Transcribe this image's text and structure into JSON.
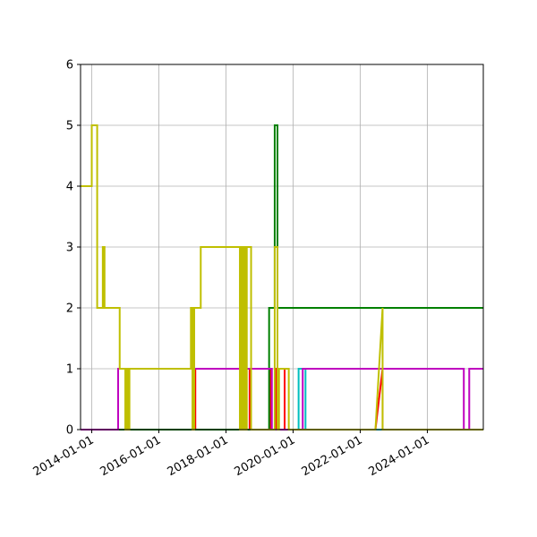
{
  "chart_data": {
    "type": "line",
    "title": "",
    "xlabel": "",
    "ylabel": "",
    "x_type": "date",
    "xlim": [
      "2013-09-01",
      "2025-09-01"
    ],
    "ylim": [
      0,
      6
    ],
    "x_ticks": [
      "2014-01-01",
      "2016-01-01",
      "2018-01-01",
      "2020-01-01",
      "2022-01-01",
      "2024-01-01"
    ],
    "y_ticks": [
      0,
      1,
      2,
      3,
      4,
      5,
      6
    ],
    "grid": true,
    "legend": "none",
    "step": "post",
    "series": [
      {
        "color": "#00bfbf",
        "points": [
          [
            "2013-09-01",
            0
          ],
          [
            "2020-03-01",
            0
          ],
          [
            "2020-03-01",
            1
          ],
          [
            "2020-05-15",
            1
          ],
          [
            "2020-05-15",
            0
          ],
          [
            "2025-09-01",
            0
          ]
        ]
      },
      {
        "color": "#ff0000",
        "points": [
          [
            "2013-09-01",
            0
          ],
          [
            "2017-02-01",
            0
          ],
          [
            "2017-02-01",
            1
          ],
          [
            "2018-07-01",
            1
          ],
          [
            "2018-07-01",
            0
          ],
          [
            "2018-09-15",
            0
          ],
          [
            "2018-09-15",
            1
          ],
          [
            "2019-05-01",
            1
          ],
          [
            "2019-05-01",
            0
          ],
          [
            "2019-07-01",
            0
          ],
          [
            "2019-07-01",
            1
          ],
          [
            "2019-10-01",
            1
          ],
          [
            "2019-10-01",
            0
          ],
          [
            "2022-06-15",
            0
          ],
          [
            "2022-09-01",
            1
          ],
          [
            "2022-09-01",
            0
          ],
          [
            "2025-09-01",
            0
          ]
        ]
      },
      {
        "color": "#008000",
        "points": [
          [
            "2013-09-01",
            0
          ],
          [
            "2019-04-15",
            0
          ],
          [
            "2019-04-15",
            2
          ],
          [
            "2019-06-15",
            2
          ],
          [
            "2019-06-15",
            5
          ],
          [
            "2019-07-15",
            5
          ],
          [
            "2019-07-15",
            2
          ],
          [
            "2025-09-01",
            2
          ]
        ]
      },
      {
        "color": "#bf00bf",
        "points": [
          [
            "2013-09-01",
            0
          ],
          [
            "2014-10-15",
            0
          ],
          [
            "2014-10-15",
            1
          ],
          [
            "2019-05-15",
            1
          ],
          [
            "2019-05-15",
            0
          ],
          [
            "2020-04-15",
            0
          ],
          [
            "2020-04-15",
            1
          ],
          [
            "2025-02-01",
            1
          ],
          [
            "2025-02-01",
            0
          ],
          [
            "2025-04-01",
            0
          ],
          [
            "2025-04-01",
            1
          ],
          [
            "2025-09-01",
            1
          ]
        ]
      },
      {
        "color": "#bfbf00",
        "points": [
          [
            "2013-09-01",
            4
          ],
          [
            "2014-01-01",
            4
          ],
          [
            "2014-01-01",
            5
          ],
          [
            "2014-03-01",
            5
          ],
          [
            "2014-03-01",
            2
          ],
          [
            "2014-05-01",
            2
          ],
          [
            "2014-05-01",
            3
          ],
          [
            "2014-05-20",
            3
          ],
          [
            "2014-05-20",
            2
          ],
          [
            "2014-11-01",
            2
          ],
          [
            "2014-11-01",
            1
          ],
          [
            "2015-01-01",
            1
          ],
          [
            "2015-01-01",
            0
          ],
          [
            "2015-01-15",
            0
          ],
          [
            "2015-01-15",
            1
          ],
          [
            "2015-02-01",
            1
          ],
          [
            "2015-02-01",
            0
          ],
          [
            "2015-02-15",
            0
          ],
          [
            "2015-02-15",
            1
          ],
          [
            "2016-12-15",
            1
          ],
          [
            "2016-12-15",
            2
          ],
          [
            "2017-01-01",
            2
          ],
          [
            "2017-01-01",
            0
          ],
          [
            "2017-01-20",
            0
          ],
          [
            "2017-01-20",
            2
          ],
          [
            "2017-04-01",
            2
          ],
          [
            "2017-04-01",
            3
          ],
          [
            "2018-06-01",
            3
          ],
          [
            "2018-06-01",
            0
          ],
          [
            "2018-06-15",
            0
          ],
          [
            "2018-06-15",
            3
          ],
          [
            "2018-07-01",
            3
          ],
          [
            "2018-07-01",
            0
          ],
          [
            "2018-07-15",
            0
          ],
          [
            "2018-07-15",
            3
          ],
          [
            "2018-08-01",
            3
          ],
          [
            "2018-08-01",
            0
          ],
          [
            "2018-08-15",
            0
          ],
          [
            "2018-08-15",
            3
          ],
          [
            "2018-10-01",
            3
          ],
          [
            "2018-10-01",
            0
          ],
          [
            "2019-06-15",
            0
          ],
          [
            "2019-06-15",
            3
          ],
          [
            "2019-07-15",
            3
          ],
          [
            "2019-07-15",
            0
          ],
          [
            "2019-08-01",
            0
          ],
          [
            "2019-08-01",
            1
          ],
          [
            "2019-11-15",
            1
          ],
          [
            "2019-11-15",
            0
          ],
          [
            "2022-06-15",
            0
          ],
          [
            "2022-09-01",
            2
          ],
          [
            "2022-09-01",
            0
          ],
          [
            "2025-09-01",
            0
          ]
        ]
      }
    ]
  }
}
